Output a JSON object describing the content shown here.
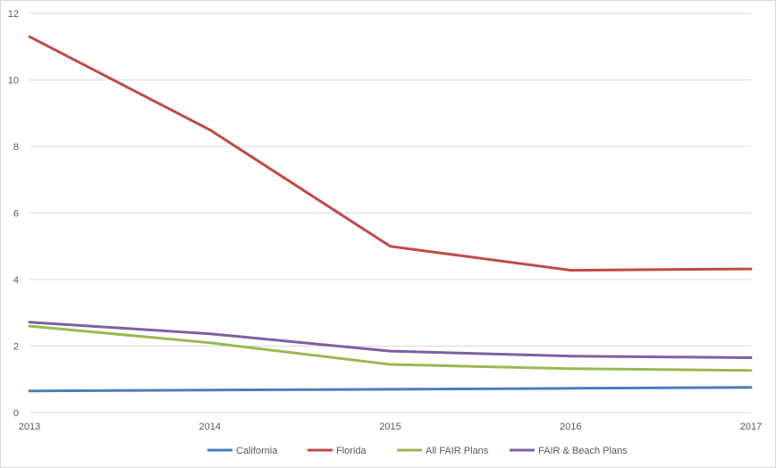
{
  "chart_data": {
    "type": "line",
    "title": "",
    "xlabel": "",
    "ylabel": "",
    "x": [
      "2013",
      "2014",
      "2015",
      "2016",
      "2017"
    ],
    "ylim": [
      0,
      12
    ],
    "yticks": [
      0,
      2,
      4,
      6,
      8,
      10,
      12
    ],
    "grid": "horizontal",
    "legend_position": "bottom",
    "series": [
      {
        "name": "California",
        "color": "#4a7ebb",
        "values": [
          0.65,
          0.68,
          0.7,
          0.73,
          0.76
        ]
      },
      {
        "name": "Florida",
        "color": "#be4b48",
        "values": [
          11.3,
          8.5,
          5.0,
          4.28,
          4.32
        ]
      },
      {
        "name": "All FAIR Plans",
        "color": "#98b954",
        "values": [
          2.6,
          2.1,
          1.45,
          1.32,
          1.27
        ]
      },
      {
        "name": "FAIR & Beach Plans",
        "color": "#7d60a0",
        "values": [
          2.72,
          2.37,
          1.85,
          1.7,
          1.65
        ]
      }
    ]
  }
}
